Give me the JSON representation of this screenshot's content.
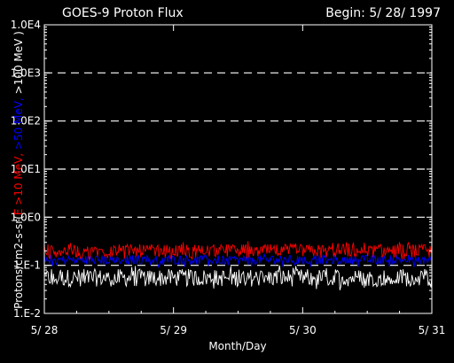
{
  "chart_data": {
    "type": "line",
    "title": "GOES-9 Proton Flux",
    "subtitle": "Begin: 5/ 28/ 1997",
    "xlabel": "Month/Day",
    "ylabel_parts": [
      {
        "text": "Protons/cm2-s-sr(",
        "color": "#ffffff"
      },
      {
        "text": "E >10 MeV, ",
        "color": "#ff0000"
      },
      {
        "text": ">50 MeV, ",
        "color": "#0000ff"
      },
      {
        "text": ">100 MeV )",
        "color": "#ffffff"
      }
    ],
    "y_scale": "log",
    "ylim": [
      0.01,
      10000
    ],
    "y_tick_values": [
      0.01,
      0.1,
      1,
      10,
      100,
      1000,
      10000
    ],
    "y_tick_labels": [
      "1.E-2",
      "1.E-1",
      "1.0E0",
      "1.0E1",
      "1.0E2",
      "1.0E3",
      "1.0E4"
    ],
    "x_tick_values": [
      0,
      1,
      2,
      3
    ],
    "x_tick_labels": [
      "5/ 28",
      "5/ 29",
      "5/ 30",
      "5/ 31"
    ],
    "xlim": [
      0,
      3
    ],
    "grid": "dashed horizontal at decades",
    "series": [
      {
        "color": "#ffffff",
        "typical": 0.055,
        "low": 0.03,
        "high": 0.1
      },
      {
        "color": "#0000ff",
        "typical": 0.13,
        "low": 0.09,
        "high": 0.17
      },
      {
        "color": "#ff0000",
        "typical": 0.2,
        "low": 0.13,
        "high": 0.32
      }
    ]
  }
}
